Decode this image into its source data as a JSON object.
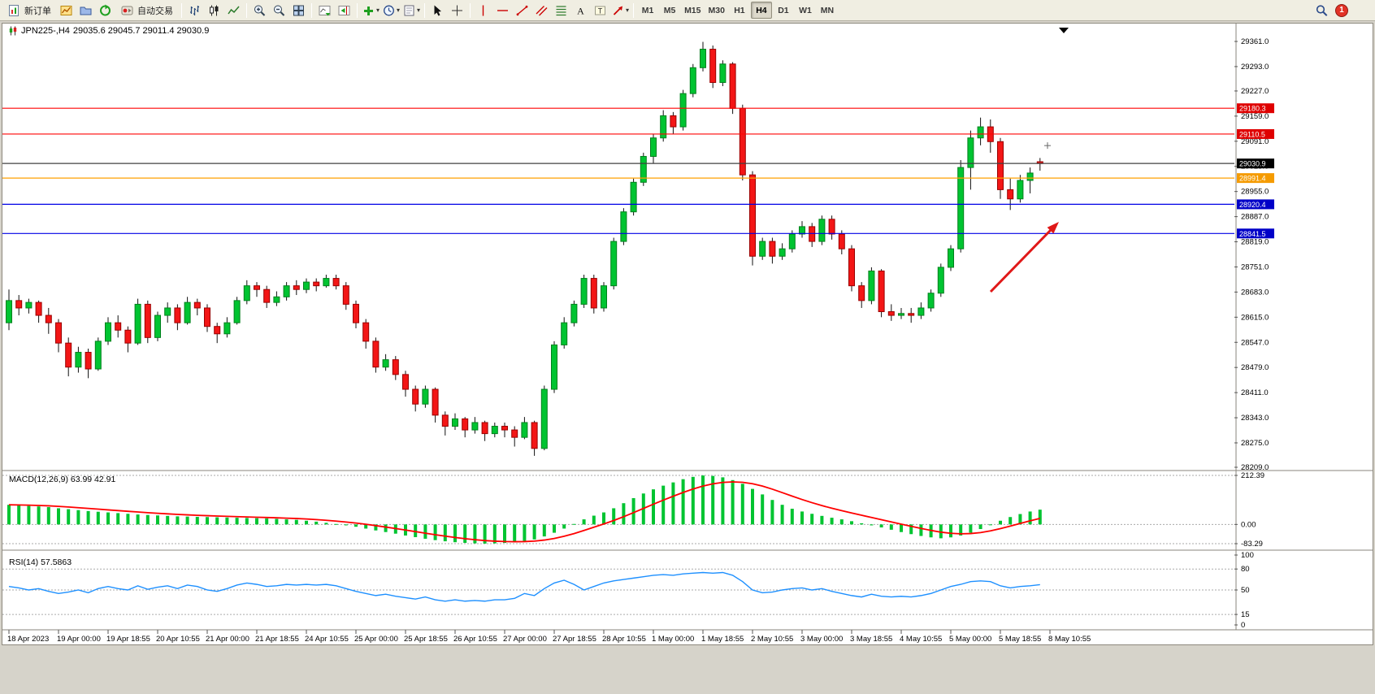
{
  "app": {
    "notification_count": "1"
  },
  "toolbar": {
    "new_order_label": "新订单",
    "autotrading_label": "自动交易",
    "timeframes": [
      "M1",
      "M5",
      "M15",
      "M30",
      "H1",
      "H4",
      "D1",
      "W1",
      "MN"
    ],
    "active_timeframe": "H4",
    "caret": "▾"
  },
  "chart": {
    "title_text": "JPN225-,H4",
    "ohlc_text": "29035.6 29045.7 29011.4 29030.9"
  },
  "chart_data": {
    "type": "candlestick",
    "symbol": "JPN225-",
    "timeframe": "H4",
    "up_color": "#00C431",
    "up_border": "#00801c",
    "down_color": "#F31616",
    "down_border": "#9a0000",
    "wick_color": "#111111",
    "price_axis": {
      "max": 29361.0,
      "min": 28209.0,
      "tick_labels": [
        "29361.0",
        "29293.0",
        "29227.0",
        "29159.0",
        "29091.0",
        "29023.0",
        "28955.0",
        "28887.0",
        "28819.0",
        "28751.0",
        "28683.0",
        "28615.0",
        "28547.0",
        "28479.0",
        "28411.0",
        "28343.0",
        "28275.0",
        "28209.0"
      ]
    },
    "hlines": [
      {
        "price": 29180.3,
        "label": "29180.3",
        "color": "#FF0404",
        "tag_bg": "#DF0000"
      },
      {
        "price": 29110.5,
        "label": "29110.5",
        "color": "#FF0404",
        "tag_bg": "#DF0000"
      },
      {
        "price": 28991.4,
        "label": "28991.4",
        "color": "#FFA000",
        "tag_bg": "#F59B00"
      },
      {
        "price": 28920.4,
        "label": "28920.4",
        "color": "#0000E6",
        "tag_bg": "#0000C8"
      },
      {
        "price": 28841.5,
        "label": "28841.5",
        "color": "#0000E6",
        "tag_bg": "#0000C8"
      }
    ],
    "bid_line": {
      "price": 29030.9,
      "label": "29030.9",
      "line_color": "#404040",
      "tag_bg": "#000000"
    },
    "annotations": [
      {
        "type": "arrow",
        "direction": "up-right",
        "color": "#E01818"
      }
    ],
    "candles": [
      [
        28600,
        28690,
        28580,
        28660
      ],
      [
        28660,
        28675,
        28620,
        28640
      ],
      [
        28640,
        28665,
        28625,
        28655
      ],
      [
        28655,
        28660,
        28600,
        28620
      ],
      [
        28620,
        28640,
        28570,
        28600
      ],
      [
        28600,
        28610,
        28520,
        28545
      ],
      [
        28545,
        28560,
        28455,
        28480
      ],
      [
        28480,
        28535,
        28465,
        28520
      ],
      [
        28520,
        28530,
        28450,
        28475
      ],
      [
        28475,
        28560,
        28470,
        28550
      ],
      [
        28550,
        28615,
        28540,
        28600
      ],
      [
        28600,
        28620,
        28560,
        28580
      ],
      [
        28580,
        28590,
        28520,
        28545
      ],
      [
        28545,
        28665,
        28540,
        28650
      ],
      [
        28650,
        28660,
        28545,
        28560
      ],
      [
        28560,
        28630,
        28550,
        28620
      ],
      [
        28620,
        28655,
        28600,
        28640
      ],
      [
        28640,
        28650,
        28580,
        28600
      ],
      [
        28600,
        28670,
        28595,
        28655
      ],
      [
        28655,
        28665,
        28620,
        28640
      ],
      [
        28640,
        28650,
        28575,
        28590
      ],
      [
        28590,
        28600,
        28545,
        28570
      ],
      [
        28570,
        28615,
        28560,
        28600
      ],
      [
        28600,
        28670,
        28595,
        28660
      ],
      [
        28660,
        28715,
        28650,
        28700
      ],
      [
        28700,
        28710,
        28670,
        28690
      ],
      [
        28690,
        28700,
        28640,
        28655
      ],
      [
        28655,
        28685,
        28645,
        28670
      ],
      [
        28670,
        28710,
        28660,
        28700
      ],
      [
        28700,
        28715,
        28675,
        28690
      ],
      [
        28690,
        28720,
        28680,
        28710
      ],
      [
        28710,
        28720,
        28685,
        28700
      ],
      [
        28700,
        28730,
        28695,
        28720
      ],
      [
        28720,
        28730,
        28690,
        28700
      ],
      [
        28700,
        28710,
        28635,
        28650
      ],
      [
        28650,
        28660,
        28585,
        28600
      ],
      [
        28600,
        28610,
        28530,
        28550
      ],
      [
        28550,
        28560,
        28465,
        28480
      ],
      [
        28480,
        28515,
        28470,
        28500
      ],
      [
        28500,
        28510,
        28445,
        28460
      ],
      [
        28460,
        28470,
        28400,
        28420
      ],
      [
        28420,
        28430,
        28360,
        28380
      ],
      [
        28380,
        28430,
        28370,
        28420
      ],
      [
        28420,
        28425,
        28330,
        28350
      ],
      [
        28350,
        28360,
        28295,
        28320
      ],
      [
        28320,
        28355,
        28310,
        28340
      ],
      [
        28340,
        28345,
        28290,
        28310
      ],
      [
        28310,
        28345,
        28300,
        28330
      ],
      [
        28330,
        28335,
        28280,
        28300
      ],
      [
        28300,
        28330,
        28290,
        28320
      ],
      [
        28320,
        28330,
        28290,
        28310
      ],
      [
        28310,
        28320,
        28265,
        28290
      ],
      [
        28290,
        28345,
        28285,
        28330
      ],
      [
        28330,
        28335,
        28240,
        28260
      ],
      [
        28260,
        28430,
        28255,
        28420
      ],
      [
        28420,
        28550,
        28410,
        28540
      ],
      [
        28540,
        28615,
        28530,
        28600
      ],
      [
        28600,
        28660,
        28590,
        28650
      ],
      [
        28650,
        28730,
        28640,
        28720
      ],
      [
        28720,
        28730,
        28625,
        28640
      ],
      [
        28640,
        28710,
        28630,
        28700
      ],
      [
        28700,
        28830,
        28690,
        28820
      ],
      [
        28820,
        28910,
        28810,
        28900
      ],
      [
        28900,
        28990,
        28890,
        28980
      ],
      [
        28980,
        29060,
        28970,
        29050
      ],
      [
        29050,
        29110,
        29030,
        29100
      ],
      [
        29100,
        29175,
        29090,
        29160
      ],
      [
        29160,
        29170,
        29110,
        29130
      ],
      [
        29130,
        29230,
        29120,
        29220
      ],
      [
        29220,
        29300,
        29210,
        29290
      ],
      [
        29290,
        29360,
        29280,
        29340
      ],
      [
        29340,
        29350,
        29235,
        29250
      ],
      [
        29250,
        29310,
        29240,
        29300
      ],
      [
        29300,
        29305,
        29165,
        29180
      ],
      [
        29180,
        29190,
        28985,
        29000
      ],
      [
        29000,
        29010,
        28755,
        28780
      ],
      [
        28780,
        28830,
        28770,
        28820
      ],
      [
        28820,
        28830,
        28760,
        28780
      ],
      [
        28780,
        28815,
        28770,
        28800
      ],
      [
        28800,
        28850,
        28790,
        28840
      ],
      [
        28840,
        28875,
        28830,
        28860
      ],
      [
        28860,
        28870,
        28805,
        28820
      ],
      [
        28820,
        28890,
        28810,
        28880
      ],
      [
        28880,
        28890,
        28825,
        28840
      ],
      [
        28840,
        28850,
        28785,
        28800
      ],
      [
        28800,
        28810,
        28685,
        28700
      ],
      [
        28700,
        28710,
        28640,
        28660
      ],
      [
        28660,
        28750,
        28650,
        28740
      ],
      [
        28740,
        28745,
        28615,
        28630
      ],
      [
        28630,
        28650,
        28605,
        28620
      ],
      [
        28620,
        28640,
        28610,
        28625
      ],
      [
        28625,
        28640,
        28600,
        28620
      ],
      [
        28620,
        28655,
        28610,
        28640
      ],
      [
        28640,
        28690,
        28630,
        28680
      ],
      [
        28680,
        28760,
        28670,
        28750
      ],
      [
        28750,
        28810,
        28740,
        28800
      ],
      [
        28800,
        29040,
        28790,
        29020
      ],
      [
        29020,
        29120,
        28960,
        29100
      ],
      [
        29100,
        29155,
        29080,
        29130
      ],
      [
        29130,
        29150,
        29060,
        29090
      ],
      [
        29090,
        29100,
        28935,
        28960
      ],
      [
        28960,
        28990,
        28905,
        28935
      ],
      [
        28935,
        29000,
        28925,
        28985
      ],
      [
        28985,
        29020,
        28950,
        29005
      ],
      [
        29035.6,
        29045.7,
        29011.4,
        29030.9
      ]
    ],
    "time_labels": [
      "18 Apr 2023",
      "19 Apr 00:00",
      "19 Apr 18:55",
      "20 Apr 10:55",
      "21 Apr 00:00",
      "21 Apr 18:55",
      "24 Apr 10:55",
      "25 Apr 00:00",
      "25 Apr 18:55",
      "26 Apr 10:55",
      "27 Apr 00:00",
      "27 Apr 18:55",
      "28 Apr 10:55",
      "1 May 00:00",
      "1 May 18:55",
      "2 May 10:55",
      "3 May 00:00",
      "3 May 18:55",
      "4 May 10:55",
      "5 May 00:00",
      "5 May 18:55",
      "8 May 10:55"
    ],
    "macd": {
      "label": "MACD(12,26,9) 63.99 42.91",
      "hist_color": "#00C431",
      "signal_color": "#FF0000",
      "max": 212.39,
      "min": -83.29,
      "axis_labels": [
        "212.39",
        "0.00",
        "-83.29"
      ],
      "values": [
        85,
        82,
        80,
        78,
        75,
        70,
        66,
        62,
        58,
        55,
        52,
        49,
        46,
        43,
        41,
        39,
        37,
        35,
        34,
        33,
        32,
        31,
        30,
        29,
        28,
        27,
        26,
        24,
        22,
        20,
        16,
        12,
        7,
        2,
        -4,
        -10,
        -18,
        -26,
        -33,
        -40,
        -48,
        -55,
        -62,
        -68,
        -73,
        -77,
        -80,
        -82,
        -83,
        -82,
        -80,
        -77,
        -72,
        -65,
        -52,
        -36,
        -18,
        2,
        22,
        38,
        52,
        70,
        92,
        114,
        134,
        152,
        168,
        182,
        196,
        206,
        212,
        210,
        204,
        192,
        176,
        154,
        130,
        106,
        85,
        68,
        56,
        46,
        37,
        29,
        22,
        14,
        5,
        -4,
        -13,
        -23,
        -33,
        -42,
        -50,
        -56,
        -60,
        -56,
        -48,
        -36,
        -20,
        -2,
        16,
        32,
        45,
        56,
        63.99
      ]
    },
    "rsi": {
      "label": "RSI(14) 57.5863",
      "color": "#1E90FF",
      "max": 100,
      "min": 0,
      "levels": [
        80,
        50,
        15
      ],
      "axis_labels": [
        "100",
        "80",
        "50",
        "15",
        "0"
      ],
      "values": [
        55,
        53,
        50,
        52,
        48,
        45,
        47,
        50,
        46,
        52,
        55,
        52,
        50,
        56,
        51,
        54,
        56,
        52,
        57,
        55,
        50,
        48,
        52,
        57,
        60,
        58,
        55,
        56,
        58,
        57,
        58,
        57,
        58,
        56,
        52,
        48,
        45,
        42,
        44,
        41,
        39,
        37,
        40,
        36,
        34,
        36,
        34,
        35,
        34,
        36,
        36,
        38,
        45,
        42,
        52,
        60,
        64,
        58,
        50,
        55,
        60,
        63,
        65,
        67,
        69,
        71,
        72,
        71,
        73,
        74,
        75,
        74,
        75,
        71,
        62,
        50,
        46,
        47,
        50,
        52,
        53,
        50,
        52,
        48,
        45,
        42,
        40,
        44,
        41,
        40,
        41,
        40,
        42,
        45,
        50,
        55,
        58,
        62,
        63,
        62,
        56,
        53,
        55,
        56,
        57.59
      ]
    }
  }
}
